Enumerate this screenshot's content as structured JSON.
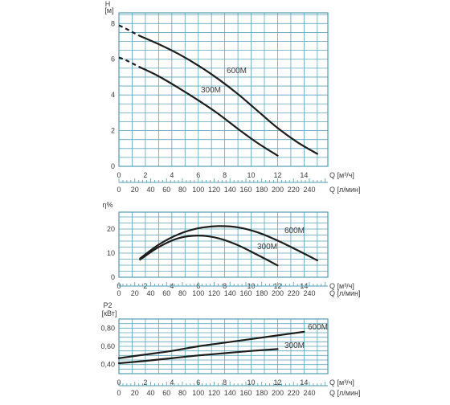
{
  "chart_data": [
    {
      "type": "line",
      "ylabel": "H",
      "yunit": "[м]",
      "ylim": [
        0,
        8.6
      ],
      "yticks": [
        0,
        2,
        4,
        6,
        8
      ],
      "ytick_labels": [
        "0",
        "2",
        "4",
        "6",
        "8"
      ],
      "xlabel": "Q [м³/ч]",
      "xlim": [
        0,
        15.8
      ],
      "xticks": [
        0,
        2,
        4,
        6,
        8,
        10,
        12,
        14
      ],
      "x2label": "Q [л/мин]",
      "x2ticks": [
        0,
        20,
        40,
        60,
        80,
        100,
        120,
        140,
        160,
        180,
        200,
        220,
        240
      ],
      "grid": true,
      "series": [
        {
          "name": "600M",
          "color": "#1d1d1b",
          "dashed_x": [
            0,
            0.3,
            0.7,
            1.2,
            1.6
          ],
          "dashed_y": [
            7.9,
            7.8,
            7.65,
            7.45,
            7.3
          ],
          "x": [
            1.6,
            3,
            4.5,
            6,
            7.5,
            9,
            10.5,
            12,
            13.5,
            15
          ],
          "y": [
            7.3,
            6.85,
            6.3,
            5.65,
            4.9,
            4.05,
            3.1,
            2.15,
            1.35,
            0.7
          ]
        },
        {
          "name": "300M",
          "color": "#1d1d1b",
          "dashed_x": [
            0,
            0.4,
            0.8,
            1.2,
            1.6
          ],
          "dashed_y": [
            6.1,
            6.0,
            5.85,
            5.7,
            5.55
          ],
          "x": [
            1.6,
            3,
            4.5,
            6,
            7.5,
            9,
            10.5,
            12
          ],
          "y": [
            5.55,
            5.05,
            4.4,
            3.7,
            2.95,
            2.1,
            1.3,
            0.6
          ]
        }
      ]
    },
    {
      "type": "line",
      "ylabel": "η%",
      "ylim": [
        0,
        27
      ],
      "yticks": [
        0,
        10,
        20
      ],
      "ytick_labels": [
        "0",
        "10",
        "20"
      ],
      "xlabel": "Q [м³/ч]",
      "xlim": [
        0,
        15.8
      ],
      "xticks": [
        0,
        2,
        4,
        6,
        8,
        10,
        12,
        14
      ],
      "x2label": "Q [л/мин]",
      "x2ticks": [
        0,
        20,
        40,
        60,
        80,
        100,
        120,
        140,
        160,
        180,
        200,
        220,
        240
      ],
      "grid": true,
      "series": [
        {
          "name": "600M",
          "color": "#1d1d1b",
          "x": [
            1.6,
            3,
            4.5,
            6,
            7.5,
            9,
            10.5,
            12,
            13.5,
            15
          ],
          "y": [
            7.8,
            13.5,
            17.8,
            20.3,
            21.2,
            20.7,
            18.6,
            15.2,
            11.2,
            7
          ]
        },
        {
          "name": "300M",
          "color": "#1d1d1b",
          "x": [
            1.6,
            3,
            4.5,
            6,
            7.5,
            9,
            10.5,
            12
          ],
          "y": [
            7.3,
            12.5,
            16.2,
            17.3,
            16.2,
            13.3,
            9.2,
            4.9
          ]
        }
      ]
    },
    {
      "type": "line",
      "ylabel": "P2",
      "yunit": "[кВт]",
      "ylim": [
        0.3,
        0.9
      ],
      "yticks": [
        0.4,
        0.6,
        0.8
      ],
      "ytick_labels": [
        "0,40",
        "0,60",
        "0,80"
      ],
      "xlabel": "Q [м³/ч]",
      "xlim": [
        0,
        15.8
      ],
      "xticks": [
        0,
        2,
        4,
        6,
        8,
        10,
        12,
        14
      ],
      "x2label": "Q [л/мин]",
      "x2ticks": [
        0,
        20,
        40,
        60,
        80,
        100,
        120,
        140,
        160,
        180,
        200,
        220,
        240
      ],
      "grid": true,
      "series": [
        {
          "name": "600M",
          "color": "#1d1d1b",
          "x": [
            0,
            2,
            4,
            6,
            8,
            10,
            12,
            14
          ],
          "y": [
            0.47,
            0.51,
            0.55,
            0.6,
            0.64,
            0.68,
            0.72,
            0.76
          ]
        },
        {
          "name": "300M",
          "color": "#1d1d1b",
          "x": [
            0,
            2,
            4,
            6,
            8,
            10,
            12
          ],
          "y": [
            0.415,
            0.44,
            0.47,
            0.5,
            0.525,
            0.55,
            0.57
          ]
        }
      ]
    }
  ]
}
